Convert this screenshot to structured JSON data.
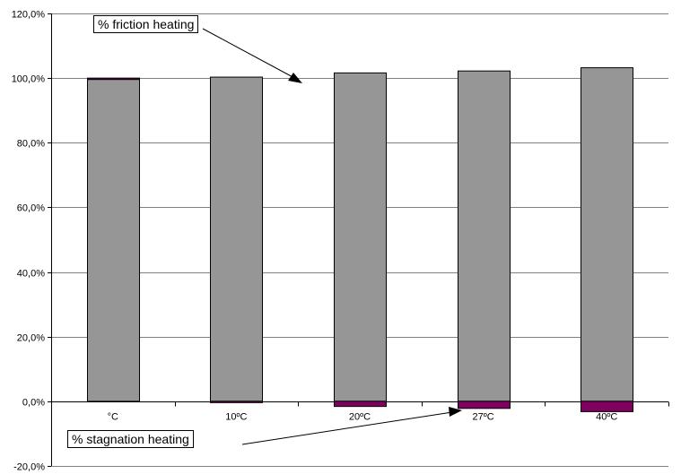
{
  "chart_data": {
    "type": "bar",
    "categories": [
      "°C",
      "10ºC",
      "20ºC",
      "27ºC",
      "40ºC"
    ],
    "series": [
      {
        "name": "% friction heating",
        "color": "#969696",
        "values": [
          99.6,
          100.3,
          101.6,
          102.2,
          103.2
        ]
      },
      {
        "name": "% stagnation heating",
        "color": "#800060",
        "values": [
          0.4,
          -0.3,
          -1.6,
          -2.2,
          -3.2
        ]
      }
    ],
    "ylim": [
      -20,
      120
    ],
    "yticks": [
      -20,
      0,
      20,
      40,
      60,
      80,
      100,
      120
    ],
    "ytick_labels": [
      "-20,0%",
      "0,0%",
      "20,0%",
      "40,0%",
      "60,0%",
      "80,0%",
      "100,0%",
      "120,0%"
    ],
    "grid": "horizontal",
    "stacked": true,
    "annotations": [
      "% friction heating",
      "% stagnation heating"
    ],
    "title": "",
    "xlabel": "",
    "ylabel": ""
  }
}
